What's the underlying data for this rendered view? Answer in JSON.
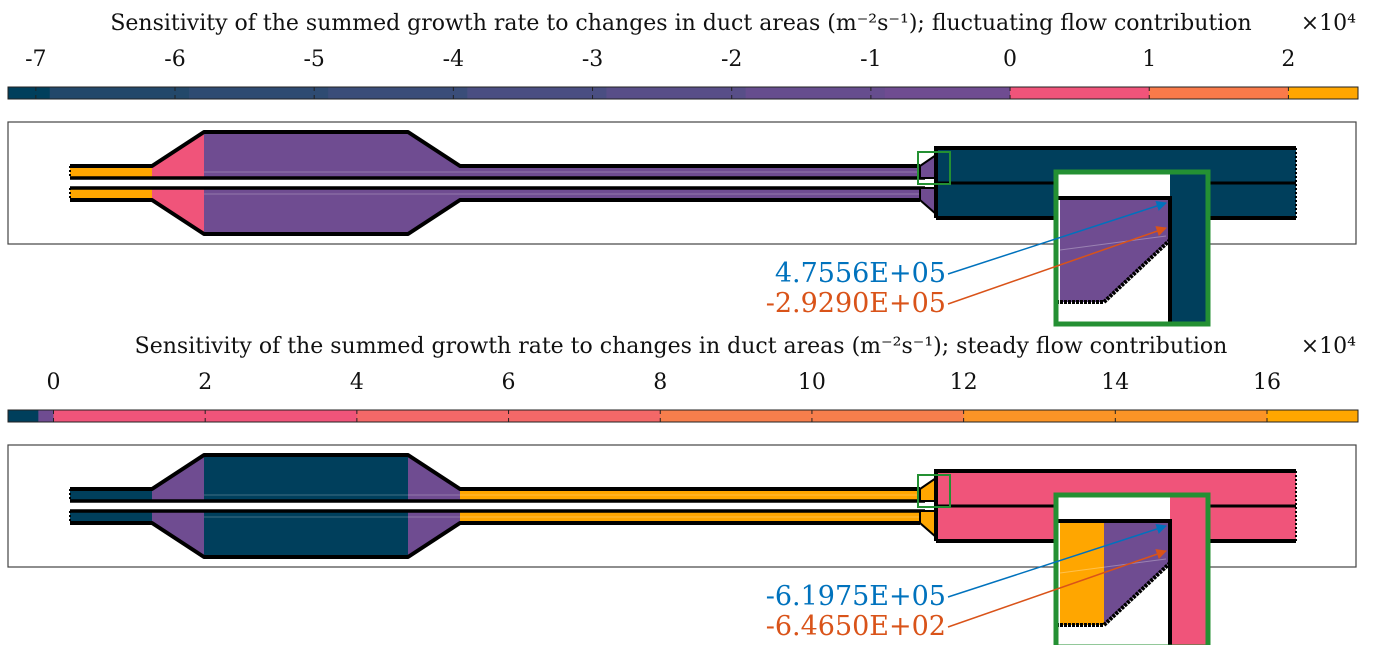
{
  "colors": {
    "dark": "#003F5C",
    "purple": "#6F4C91",
    "pink": "#F0547A",
    "orange": "#FFA600",
    "green": "#249033",
    "blue_annot": "#0072BD",
    "red_annot": "#D95319",
    "frame": "#444444"
  },
  "panels": [
    {
      "title": "Sensitivity of the summed growth rate to changes in duct areas (m⁻²s⁻¹); fluctuating flow contribution",
      "exponent_label": "×10⁴",
      "colorbar": {
        "min": -7.2,
        "max": 2.5,
        "ticks": [
          -7,
          -6,
          -5,
          -4,
          -3,
          -2,
          -1,
          0,
          1,
          2
        ],
        "tick_labels": [
          "-7",
          "-6",
          "-5",
          "-4",
          "-3",
          "-2",
          "-1",
          "0",
          "1",
          "2"
        ],
        "segments": [
          {
            "from": -7.2,
            "to": -6.9,
            "color": "#003F5C"
          },
          {
            "from": -6.9,
            "to": -5.9,
            "color": "#23486A"
          },
          {
            "from": -5.9,
            "to": -4.9,
            "color": "#2E4B72"
          },
          {
            "from": -4.9,
            "to": -3.9,
            "color": "#3A4D79"
          },
          {
            "from": -3.9,
            "to": -2.9,
            "color": "#4A4E82"
          },
          {
            "from": -2.9,
            "to": -1.9,
            "color": "#584E88"
          },
          {
            "from": -1.9,
            "to": -0.9,
            "color": "#664D8E"
          },
          {
            "from": -0.9,
            "to": 0.0,
            "color": "#6F4C91"
          },
          {
            "from": 0.0,
            "to": 1.0,
            "color": "#F0547A"
          },
          {
            "from": 1.0,
            "to": 2.0,
            "color": "#F97A4A"
          },
          {
            "from": 2.0,
            "to": 2.5,
            "color": "#FFA600"
          }
        ]
      },
      "duct_colors": {
        "inlet": "#FFA600",
        "cone_in": "#F0547A",
        "plenum": "#6F4C91",
        "cone_out": "#6F4C91",
        "neck": "#6F4C91",
        "chamber": "#003F5C",
        "inset_stub": "#6F4C91",
        "inset_wedge": "#6F4C91",
        "inset_bar": "#003F5C"
      },
      "annotations": [
        "4.7556E+05",
        "-2.9290E+05"
      ]
    },
    {
      "title": "Sensitivity of the summed growth rate to changes in duct areas (m⁻²s⁻¹); steady flow contribution",
      "exponent_label": "×10⁴",
      "colorbar": {
        "min": -0.6,
        "max": 17.2,
        "ticks": [
          0,
          2,
          4,
          6,
          8,
          10,
          12,
          14,
          16
        ],
        "tick_labels": [
          "0",
          "2",
          "4",
          "6",
          "8",
          "10",
          "12",
          "14",
          "16"
        ],
        "segments": [
          {
            "from": -0.6,
            "to": -0.2,
            "color": "#003F5C"
          },
          {
            "from": -0.2,
            "to": 0.0,
            "color": "#6F4C91"
          },
          {
            "from": 0.0,
            "to": 4.0,
            "color": "#F0547A"
          },
          {
            "from": 4.0,
            "to": 8.0,
            "color": "#F46868"
          },
          {
            "from": 8.0,
            "to": 12.0,
            "color": "#F77E4C"
          },
          {
            "from": 12.0,
            "to": 16.0,
            "color": "#FB9426"
          },
          {
            "from": 16.0,
            "to": 17.2,
            "color": "#FFA600"
          }
        ]
      },
      "duct_colors": {
        "inlet": "#003F5C",
        "cone_in": "#6F4C91",
        "plenum": "#003F5C",
        "cone_out": "#6F4C91",
        "neck": "#FFA600",
        "chamber": "#F0547A",
        "inset_stub": "#FFA600",
        "inset_wedge": "#6F4C91",
        "inset_bar": "#F0547A"
      },
      "annotations": [
        "-6.1975E+05",
        "-6.4650E+02"
      ]
    }
  ]
}
